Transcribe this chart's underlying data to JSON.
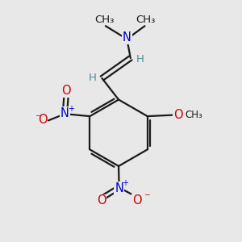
{
  "background_color": "#e8e8e8",
  "bond_color": "#1a1a1a",
  "nitrogen_color": "#0000cc",
  "oxygen_color": "#cc0000",
  "teal_color": "#4a8f8f",
  "figsize": [
    3.0,
    3.0
  ],
  "dpi": 100,
  "xlim": [
    0,
    10
  ],
  "ylim": [
    0,
    10
  ]
}
